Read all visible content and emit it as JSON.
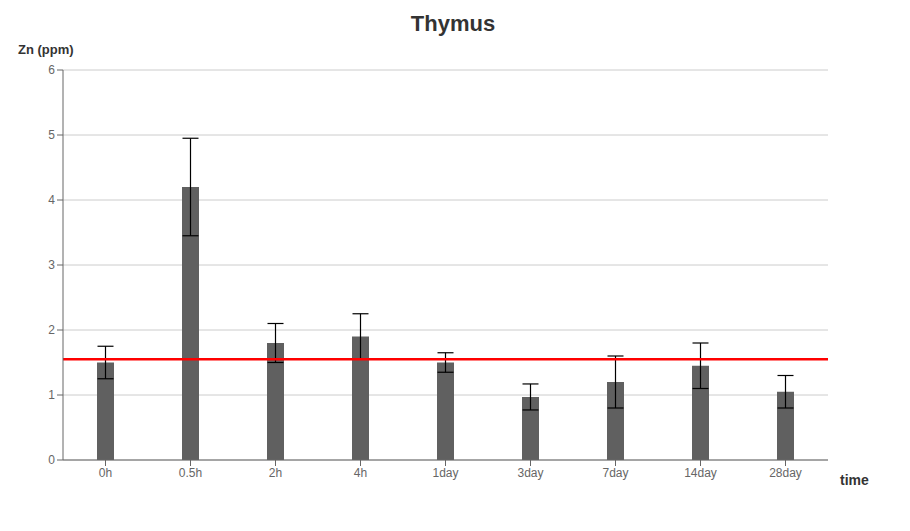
{
  "chart_data": {
    "type": "bar",
    "title": "Thymus",
    "xlabel": "time",
    "ylabel": "Zn (ppm)",
    "categories": [
      "0h",
      "0.5h",
      "2h",
      "4h",
      "1day",
      "3day",
      "7day",
      "14day",
      "28day"
    ],
    "values": [
      1.5,
      4.2,
      1.8,
      1.9,
      1.5,
      0.97,
      1.2,
      1.45,
      1.05
    ],
    "errors": [
      0.25,
      0.75,
      0.3,
      0.35,
      0.15,
      0.2,
      0.4,
      0.35,
      0.25
    ],
    "color": "#606060",
    "reference_line": {
      "y": 1.55,
      "color": "#ff0000"
    },
    "ylim": [
      0,
      6
    ],
    "yticks": [
      0,
      1,
      2,
      3,
      4,
      5,
      6
    ],
    "grid": true
  }
}
